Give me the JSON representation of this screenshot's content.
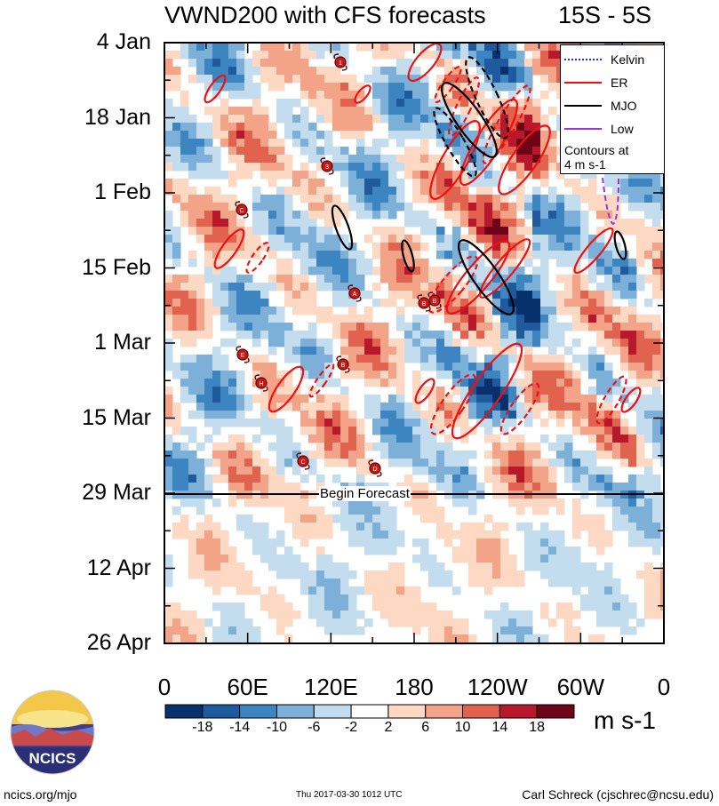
{
  "title": "VWND200 with CFS forecasts",
  "region": "15S - 5S",
  "chart_data": {
    "type": "heatmap",
    "variable": "VWND200",
    "x_labels": [
      "0",
      "60E",
      "120E",
      "180",
      "120W",
      "60W",
      "0"
    ],
    "y_labels": [
      "4 Jan",
      "18 Jan",
      "1 Feb",
      "15 Feb",
      "1 Mar",
      "15 Mar",
      "29 Mar",
      "12 Apr",
      "26 Apr"
    ],
    "forecast_label": "Begin Forecast",
    "colorbar": {
      "units": "m s-1",
      "ticks": [
        "-18",
        "-14",
        "-10",
        "-6",
        "-2",
        "2",
        "6",
        "10",
        "14",
        "18"
      ],
      "colors": [
        "#08306b",
        "#1e5a9c",
        "#3d85c0",
        "#7db0d8",
        "#c3dcee",
        "#ffffff",
        "#fdd9c4",
        "#f3a387",
        "#e0624f",
        "#b8182c",
        "#6e0418"
      ]
    },
    "legend": {
      "entries": [
        {
          "label": "Kelvin",
          "color": "#2233dd",
          "dash": "dotted"
        },
        {
          "label": "ER",
          "color": "#ee1111",
          "dash": "solid"
        },
        {
          "label": "MJO",
          "color": "#000000",
          "dash": "solid"
        },
        {
          "label": "Low",
          "color": "#9933dd",
          "dash": "solid"
        }
      ],
      "note_line1": "Contours at",
      "note_line2": "4 m s-1"
    },
    "storm_markers": [
      "1",
      "3",
      "C",
      "A",
      "B",
      "E",
      "H",
      "C",
      "D",
      "B",
      "B"
    ]
  },
  "footer": {
    "left": "ncics.org/mjo",
    "middle": "Thu 2017-03-30 1012 UTC",
    "right": "Carl Schreck (cjschrec@ncsu.edu)"
  },
  "logo": {
    "text": "NCICS"
  }
}
